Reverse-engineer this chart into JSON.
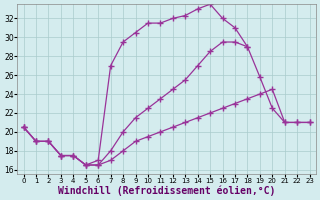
{
  "background_color": "#d4ecee",
  "grid_color": "#aacccc",
  "line_color": "#993399",
  "marker": "+",
  "markersize": 4,
  "linewidth": 0.9,
  "xlabel": "Windchill (Refroidissement éolien,°C)",
  "xlabel_fontsize": 7,
  "xlim": [
    -0.5,
    23.5
  ],
  "ylim": [
    15.5,
    33.5
  ],
  "yticks": [
    16,
    18,
    20,
    22,
    24,
    26,
    28,
    30,
    32
  ],
  "xticks": [
    0,
    1,
    2,
    3,
    4,
    5,
    6,
    7,
    8,
    9,
    10,
    11,
    12,
    13,
    14,
    15,
    16,
    17,
    18,
    19,
    20,
    21,
    22,
    23
  ],
  "curve1_x": [
    0,
    1,
    2,
    3,
    4,
    5,
    6,
    7,
    8,
    9,
    10,
    11,
    12,
    13,
    14,
    15,
    16,
    17,
    18,
    19,
    20,
    21,
    22,
    23
  ],
  "curve1_y": [
    20.5,
    19.0,
    19.0,
    17.5,
    17.5,
    16.5,
    16.5,
    17.0,
    18.0,
    19.0,
    19.5,
    20.0,
    20.5,
    21.0,
    21.5,
    22.0,
    22.5,
    23.0,
    23.5,
    24.0,
    24.5,
    21.0,
    21.0,
    21.0
  ],
  "curve2_x": [
    0,
    1,
    2,
    3,
    4,
    5,
    6,
    7,
    8,
    9,
    10,
    11,
    12,
    13,
    14,
    15,
    16,
    17,
    18,
    19,
    20,
    21,
    22,
    23
  ],
  "curve2_y": [
    20.5,
    19.0,
    19.0,
    17.5,
    17.5,
    16.5,
    16.5,
    18.0,
    20.0,
    21.5,
    22.5,
    23.5,
    24.5,
    25.5,
    27.0,
    28.5,
    29.5,
    29.5,
    29.0,
    25.8,
    22.5,
    21.0,
    21.0,
    21.0
  ],
  "curve3_x": [
    0,
    1,
    2,
    3,
    4,
    5,
    6,
    7,
    8,
    9,
    10,
    11,
    12,
    13,
    14,
    15,
    16,
    17,
    18
  ],
  "curve3_y": [
    20.5,
    19.0,
    19.0,
    17.5,
    17.5,
    16.5,
    17.0,
    27.0,
    29.5,
    30.5,
    31.5,
    31.5,
    32.0,
    32.3,
    33.0,
    33.5,
    32.0,
    31.0,
    29.0
  ]
}
